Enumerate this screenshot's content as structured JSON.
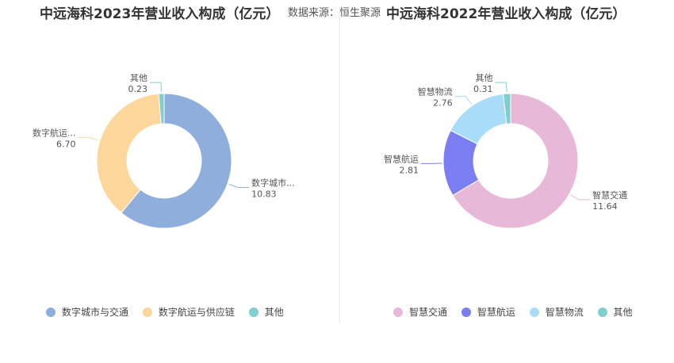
{
  "source_label": "数据来源：恒生聚源",
  "chart_data": [
    {
      "type": "pie",
      "title": "中远海科2023年营业收入构成（亿元）",
      "categories": [
        "数字城市与交通",
        "数字航运与供应链",
        "其他"
      ],
      "display_labels": [
        "数字城市...",
        "数字航运...",
        "其他"
      ],
      "values": [
        10.83,
        6.7,
        0.23
      ],
      "value_labels": [
        "10.83",
        "6.70",
        "0.23"
      ],
      "colors": [
        "#8eaedc",
        "#fcd69a",
        "#7fcfcf"
      ],
      "legend": "bottom"
    },
    {
      "type": "pie",
      "title": "中远海科2022年营业收入构成（亿元）",
      "categories": [
        "智慧交通",
        "智慧航运",
        "智慧物流",
        "其他"
      ],
      "display_labels": [
        "智慧交通",
        "智慧航运",
        "智慧物流",
        "其他"
      ],
      "values": [
        11.64,
        2.81,
        2.76,
        0.31
      ],
      "value_labels": [
        "11.64",
        "2.81",
        "2.76",
        "0.31"
      ],
      "colors": [
        "#e8b8d8",
        "#7b7ef2",
        "#a8dcf8",
        "#7fcfcf"
      ],
      "legend": "bottom"
    }
  ]
}
